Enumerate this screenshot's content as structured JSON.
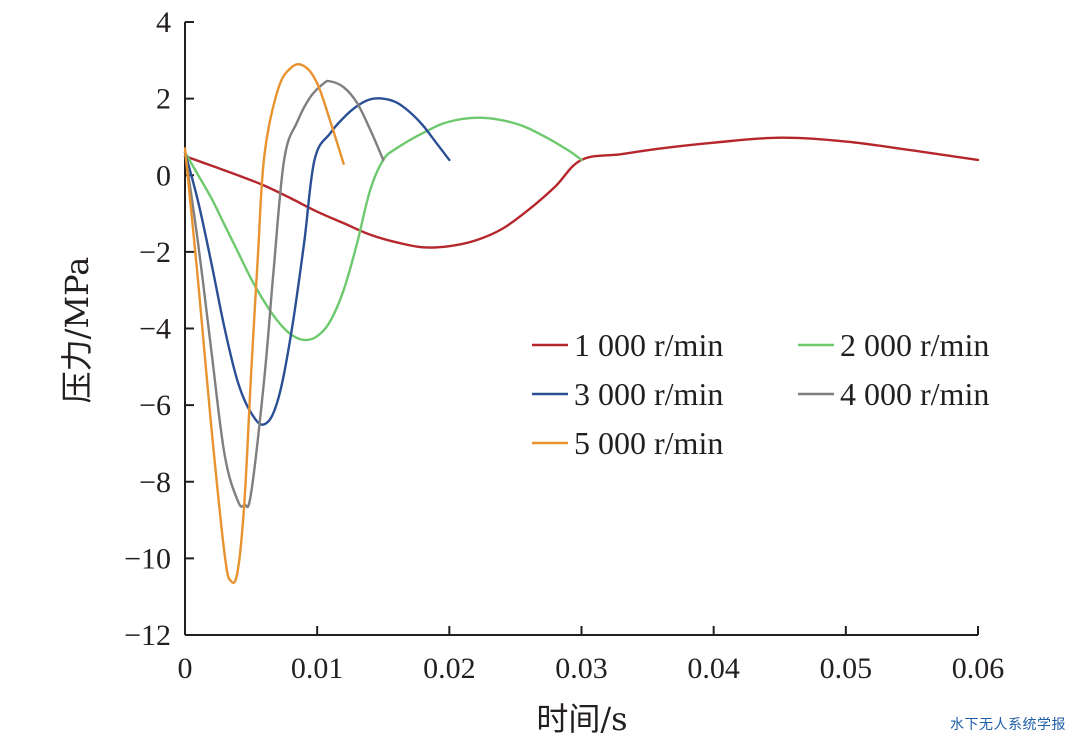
{
  "chart_data": {
    "type": "line",
    "title": "",
    "xlabel": "时间/s",
    "ylabel": "压力/MPa",
    "xlim": [
      0,
      0.06
    ],
    "ylim": [
      -12,
      4
    ],
    "xticks": [
      0,
      0.01,
      0.02,
      0.03,
      0.04,
      0.05,
      0.06
    ],
    "xtick_labels": [
      "0",
      "0.01",
      "0.02",
      "0.03",
      "0.04",
      "0.05",
      "0.06"
    ],
    "yticks": [
      4,
      2,
      0,
      -2,
      -4,
      -6,
      -8,
      -10,
      -12
    ],
    "ytick_labels": [
      "4",
      "2",
      "0",
      "−2",
      "−4",
      "−6",
      "−8",
      "−10",
      "−12"
    ],
    "grid": false,
    "legend_position": "right-center",
    "series": [
      {
        "name": "1 000 r/min",
        "color": "#b5272d",
        "x": [
          0,
          0.002,
          0.004,
          0.006,
          0.008,
          0.01,
          0.012,
          0.014,
          0.016,
          0.018,
          0.02,
          0.022,
          0.024,
          0.026,
          0.028,
          0.03,
          0.033,
          0.036,
          0.04,
          0.045,
          0.05,
          0.055,
          0.06
        ],
        "y": [
          0.5,
          0.25,
          0.0,
          -0.27,
          -0.6,
          -0.95,
          -1.25,
          -1.55,
          -1.75,
          -1.88,
          -1.85,
          -1.7,
          -1.4,
          -0.9,
          -0.3,
          0.4,
          0.55,
          0.7,
          0.85,
          0.98,
          0.88,
          0.65,
          0.4
        ]
      },
      {
        "name": "2 000 r/min",
        "color": "#6ec96e",
        "x": [
          0,
          0.001,
          0.002,
          0.003,
          0.004,
          0.005,
          0.006,
          0.007,
          0.008,
          0.009,
          0.01,
          0.011,
          0.012,
          0.013,
          0.014,
          0.015,
          0.016,
          0.018,
          0.02,
          0.0225,
          0.025,
          0.027,
          0.029,
          0.03
        ],
        "y": [
          0.6,
          0.0,
          -0.6,
          -1.3,
          -2.0,
          -2.7,
          -3.3,
          -3.8,
          -4.15,
          -4.3,
          -4.2,
          -3.8,
          -3.0,
          -1.8,
          -0.4,
          0.4,
          0.7,
          1.1,
          1.4,
          1.5,
          1.35,
          1.05,
          0.65,
          0.4
        ]
      },
      {
        "name": "3 000 r/min",
        "color": "#2a4f94",
        "x": [
          0,
          0.001,
          0.002,
          0.003,
          0.004,
          0.005,
          0.006,
          0.007,
          0.008,
          0.009,
          0.0098,
          0.011,
          0.012,
          0.013,
          0.014,
          0.015,
          0.016,
          0.017,
          0.018,
          0.019,
          0.02
        ],
        "y": [
          0.6,
          -0.7,
          -2.3,
          -4.0,
          -5.4,
          -6.2,
          -6.5,
          -5.9,
          -4.2,
          -1.8,
          0.4,
          1.1,
          1.5,
          1.8,
          1.98,
          2.0,
          1.9,
          1.65,
          1.3,
          0.85,
          0.4
        ]
      },
      {
        "name": "4 000 r/min",
        "color": "#7f7f7f",
        "x": [
          0,
          0.001,
          0.002,
          0.003,
          0.004,
          0.0045,
          0.005,
          0.006,
          0.0067,
          0.0075,
          0.0085,
          0.0095,
          0.0105,
          0.011,
          0.012,
          0.013,
          0.014,
          0.015
        ],
        "y": [
          0.6,
          -1.8,
          -4.6,
          -7.3,
          -8.5,
          -8.6,
          -8.3,
          -5.3,
          -2.5,
          0.4,
          1.4,
          2.05,
          2.4,
          2.45,
          2.3,
          1.9,
          1.2,
          0.4
        ]
      },
      {
        "name": "5 000 r/min",
        "color": "#e8932f",
        "x": [
          0,
          0.001,
          0.002,
          0.003,
          0.0035,
          0.004,
          0.0045,
          0.005,
          0.0055,
          0.006,
          0.007,
          0.008,
          0.009,
          0.01,
          0.011,
          0.012
        ],
        "y": [
          0.7,
          -2.8,
          -6.6,
          -9.9,
          -10.6,
          -10.3,
          -8.5,
          -5.2,
          -2.2,
          0.5,
          2.2,
          2.8,
          2.85,
          2.4,
          1.4,
          0.3
        ]
      }
    ]
  },
  "watermark": "水下无人系统学报"
}
